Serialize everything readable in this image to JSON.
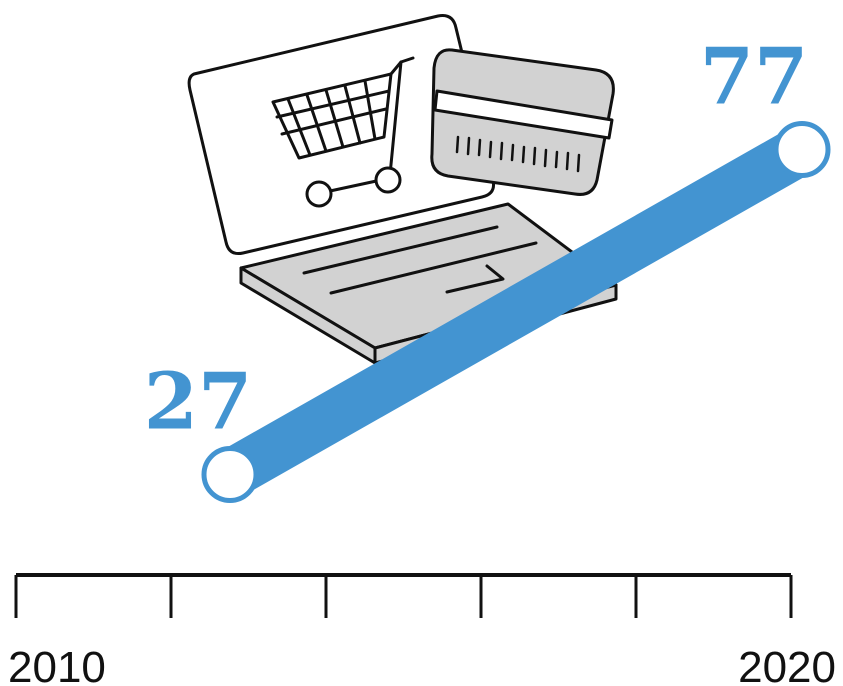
{
  "chart_data": {
    "type": "line",
    "x": [
      2010,
      2020
    ],
    "values": [
      27,
      77
    ],
    "data_labels": [
      "27",
      "77"
    ],
    "tick_labels": [
      "2010",
      "2020"
    ],
    "xlim": [
      2010,
      2020
    ],
    "ylim": [
      0,
      100
    ],
    "grid": false,
    "legend": "none"
  },
  "icons": [
    "laptop-icon",
    "shopping-cart-icon",
    "credit-card-icon"
  ],
  "colors": {
    "line": "#4394d1",
    "label": "#4394d1",
    "axis": "#111111",
    "icon_fill": "#d2d2d2",
    "icon_stroke": "#111111"
  }
}
